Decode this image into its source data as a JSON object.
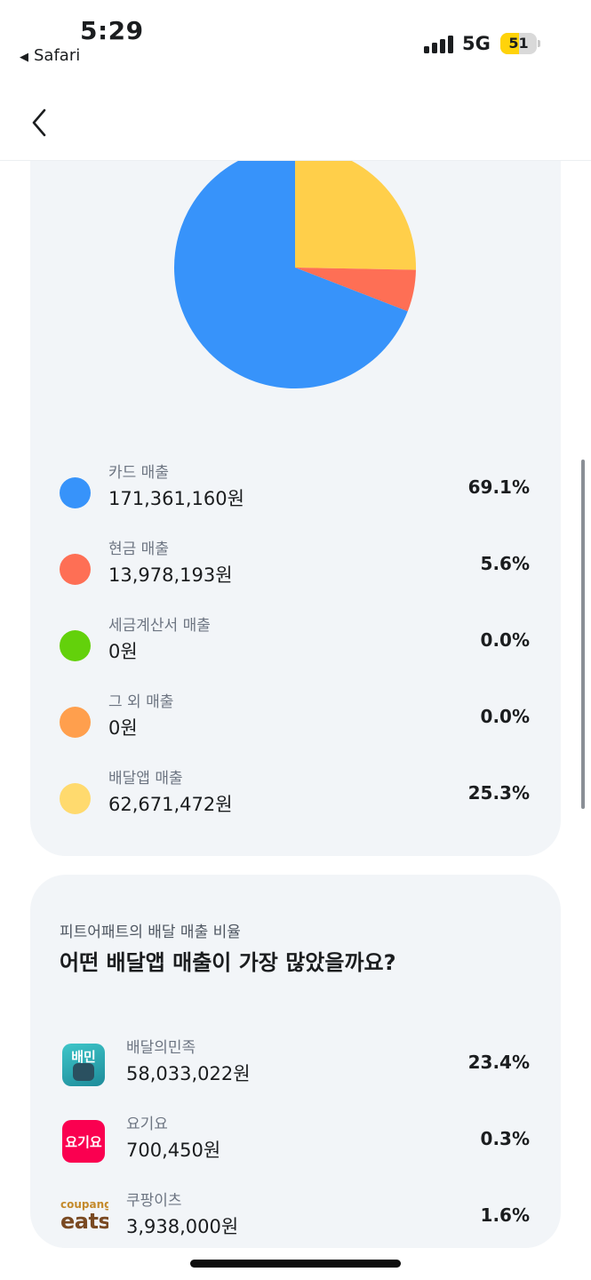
{
  "status_bar": {
    "time": "5:29",
    "back_app": "Safari",
    "network": "5G",
    "battery_level": "51",
    "battery_fraction": 0.51
  },
  "nav": {
    "back_icon": "chevron-left-icon"
  },
  "sales_card": {
    "pie_order": [
      "delivery",
      "cash",
      "card"
    ],
    "rows": [
      {
        "key": "card",
        "label": "카드 매출",
        "value": "171,361,160원",
        "percent": "69.1%",
        "share": 69.1,
        "color": "#3793fa"
      },
      {
        "key": "cash",
        "label": "현금 매출",
        "value": "13,978,193원",
        "percent": "5.6%",
        "share": 5.6,
        "color": "#fe6f55"
      },
      {
        "key": "tax",
        "label": "세금계산서 매출",
        "value": "0원",
        "percent": "0.0%",
        "share": 0.0,
        "color": "#63d10b"
      },
      {
        "key": "other",
        "label": "그 외 매출",
        "value": "0원",
        "percent": "0.0%",
        "share": 0.0,
        "color": "#ff9f4d"
      },
      {
        "key": "delivery",
        "label": "배달앱 매출",
        "value": "62,671,472원",
        "percent": "25.3%",
        "share": 25.3,
        "color": "#ffda6e"
      }
    ]
  },
  "delivery_card": {
    "subtitle": "피트어패트의 배달 매출 비율",
    "title": "어떤 배달앱 매출이 가장 많았을까요?",
    "apps": [
      {
        "name": "배달의민족",
        "value": "58,033,022원",
        "percent": "23.4%",
        "logo_text": "배민",
        "icon": "baemin-logo-icon"
      },
      {
        "name": "요기요",
        "value": "700,450원",
        "percent": "0.3%",
        "logo_text": "요기요",
        "icon": "yogiyo-logo-icon"
      },
      {
        "name": "쿠팡이츠",
        "value": "3,938,000원",
        "percent": "1.6%",
        "logo_text_top": "coupang",
        "logo_text_bottom": "eats",
        "icon": "coupang-eats-logo-icon"
      }
    ]
  }
}
